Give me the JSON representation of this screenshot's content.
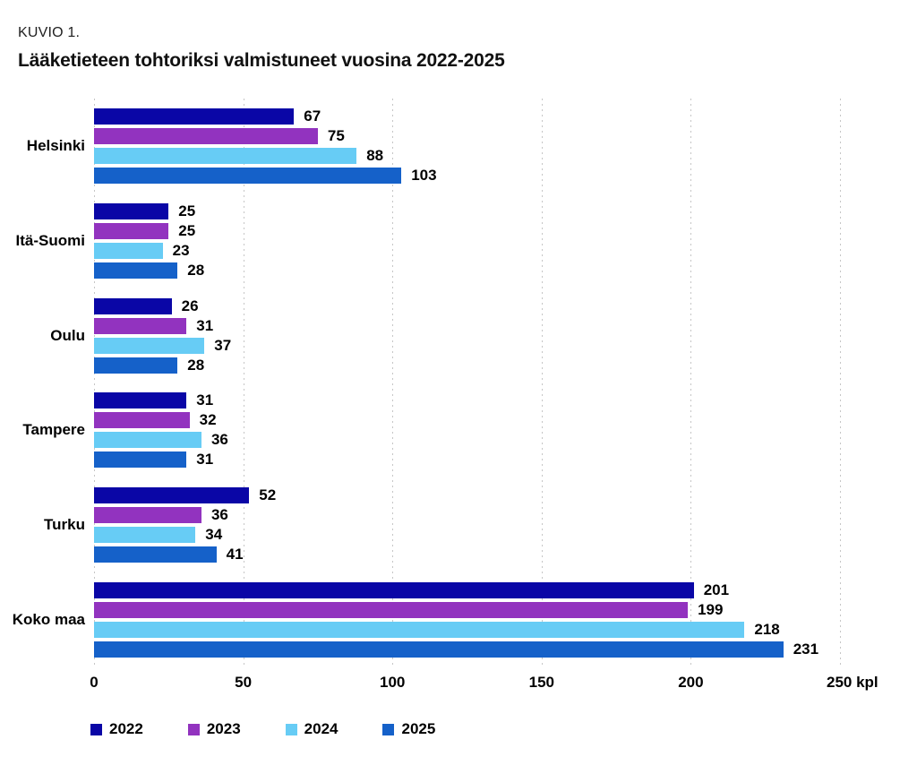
{
  "figure": {
    "number_label": "KUVIO 1.",
    "title": "Lääketieteen tohtoriksi valmistuneet vuosina 2022-2025"
  },
  "chart_data": {
    "type": "bar",
    "orientation": "horizontal",
    "title": "Lääketieteen tohtoriksi valmistuneet vuosina 2022-2025",
    "categories": [
      "Helsinki",
      "Itä-Suomi",
      "Oulu",
      "Tampere",
      "Turku",
      "Koko maa"
    ],
    "series": [
      {
        "name": "2022",
        "color": "#0a06a6",
        "values": [
          67,
          25,
          26,
          31,
          52,
          201
        ]
      },
      {
        "name": "2023",
        "color": "#9233bf",
        "values": [
          75,
          25,
          31,
          32,
          36,
          199
        ]
      },
      {
        "name": "2024",
        "color": "#67ccf5",
        "values": [
          88,
          23,
          37,
          36,
          34,
          218
        ]
      },
      {
        "name": "2025",
        "color": "#1561c9",
        "values": [
          103,
          28,
          28,
          31,
          41,
          231
        ]
      }
    ],
    "x_axis": {
      "ticks": [
        0,
        50,
        100,
        150,
        200,
        250
      ],
      "max": 250,
      "unit": "kpl"
    },
    "grid": "vertical-dotted",
    "gridline_color": "#c6c6c6",
    "value_labels": true,
    "legend_position": "bottom",
    "legend_entries": [
      "2022",
      "2023",
      "2024",
      "2025"
    ]
  }
}
